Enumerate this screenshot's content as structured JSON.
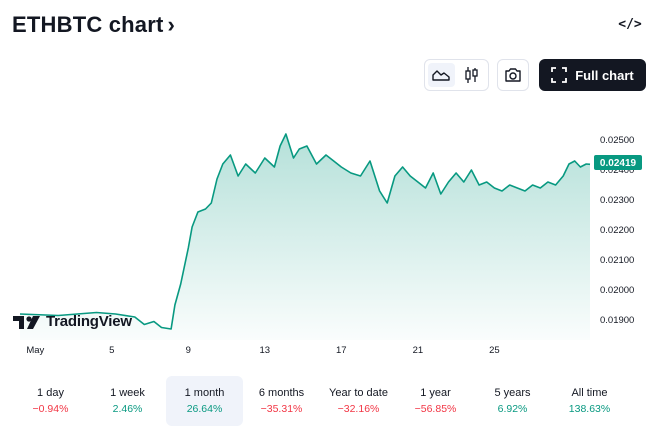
{
  "header": {
    "title": "ETHBTC chart",
    "chevron": "›",
    "embed_icon": "</>"
  },
  "toolbar": {
    "full_chart_label": "Full chart",
    "icons": [
      "area-chart-icon",
      "candles-icon",
      "camera-icon",
      "fullscreen-icon"
    ]
  },
  "logo": {
    "text": "TradingView"
  },
  "current_price": "0.02419",
  "colors": {
    "line": "#089981",
    "price_badge": "#089981",
    "negative": "#f23645",
    "positive": "#089981"
  },
  "chart_data": {
    "type": "area",
    "yticks": [
      "0.02500",
      "0.02400",
      "0.02300",
      "0.02200",
      "0.02100",
      "0.02000",
      "0.01900"
    ],
    "xticks": [
      "May",
      "5",
      "9",
      "13",
      "17",
      "21",
      "25"
    ],
    "ylim": [
      0.0185,
      0.0255
    ],
    "x": [
      0,
      2,
      4,
      5,
      6,
      6.5,
      7,
      7.4,
      7.9,
      8.1,
      8.4,
      8.8,
      9.0,
      9.3,
      9.7,
      10.0,
      10.3,
      10.6,
      11.0,
      11.4,
      11.8,
      12.3,
      12.8,
      13.3,
      13.6,
      13.9,
      14.3,
      14.6,
      15.0,
      15.5,
      16.0,
      16.4,
      16.8,
      17.3,
      17.8,
      18.3,
      18.8,
      19.2,
      19.6,
      20.0,
      20.4,
      20.8,
      21.2,
      21.6,
      22.0,
      22.4,
      22.8,
      23.2,
      23.6,
      24.0,
      24.4,
      24.8,
      25.2,
      25.6,
      26.0,
      26.4,
      26.8,
      27.2,
      27.6,
      28.0,
      28.4,
      28.7,
      29.0,
      29.3,
      29.6,
      29.8
    ],
    "y": [
      0.0192,
      0.01915,
      0.01925,
      0.0192,
      0.0191,
      0.01885,
      0.01895,
      0.01875,
      0.0187,
      0.0195,
      0.0202,
      0.0214,
      0.0221,
      0.0226,
      0.0227,
      0.0229,
      0.0237,
      0.0242,
      0.0245,
      0.0238,
      0.0242,
      0.0239,
      0.0244,
      0.0241,
      0.0248,
      0.0252,
      0.0244,
      0.0247,
      0.0248,
      0.0242,
      0.0245,
      0.0243,
      0.0241,
      0.0239,
      0.0238,
      0.0243,
      0.0233,
      0.0229,
      0.0238,
      0.0241,
      0.0238,
      0.0236,
      0.0234,
      0.0239,
      0.0232,
      0.0236,
      0.0239,
      0.0236,
      0.024,
      0.0235,
      0.0236,
      0.0234,
      0.0233,
      0.0235,
      0.0234,
      0.0233,
      0.0235,
      0.0234,
      0.0236,
      0.0235,
      0.0238,
      0.0242,
      0.0243,
      0.0241,
      0.0242,
      0.02419
    ]
  },
  "ranges": [
    {
      "label": "1 day",
      "value": "−0.94%",
      "sign": "neg"
    },
    {
      "label": "1 week",
      "value": "2.46%",
      "sign": "pos"
    },
    {
      "label": "1 month",
      "value": "26.64%",
      "sign": "pos",
      "active": true
    },
    {
      "label": "6 months",
      "value": "−35.31%",
      "sign": "neg"
    },
    {
      "label": "Year to date",
      "value": "−32.16%",
      "sign": "neg"
    },
    {
      "label": "1 year",
      "value": "−56.85%",
      "sign": "neg"
    },
    {
      "label": "5 years",
      "value": "6.92%",
      "sign": "pos"
    },
    {
      "label": "All time",
      "value": "138.63%",
      "sign": "pos"
    }
  ]
}
